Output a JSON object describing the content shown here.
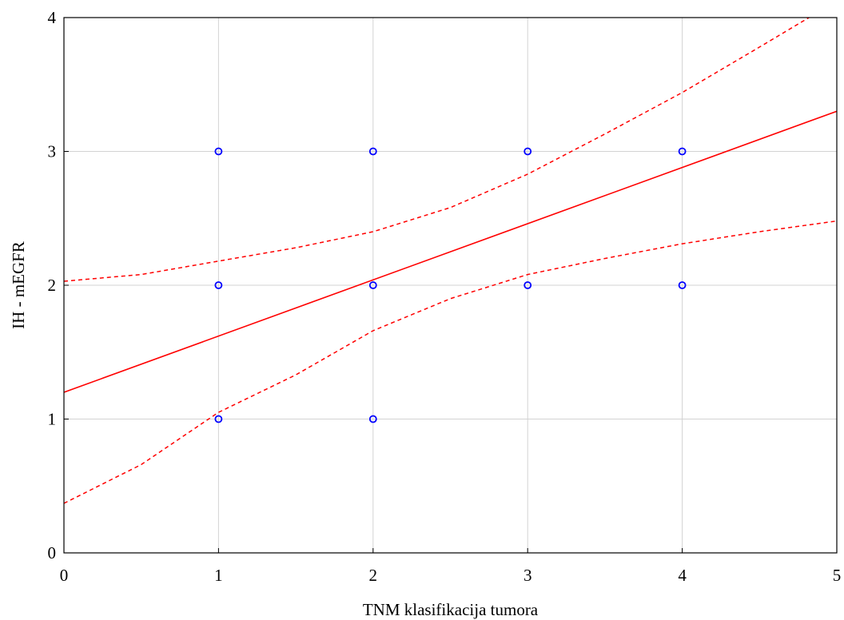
{
  "chart_data": {
    "type": "scatter",
    "xlabel": "TNM klasifikacija tumora",
    "ylabel": "IH - mEGFR",
    "xlim": [
      0,
      5
    ],
    "ylim": [
      0,
      4
    ],
    "x_ticks": [
      "0",
      "1",
      "2",
      "3",
      "4",
      "5"
    ],
    "y_ticks": [
      "0",
      "1",
      "2",
      "3",
      "4"
    ],
    "grid": true,
    "points": [
      {
        "x": 1,
        "y": 3
      },
      {
        "x": 1,
        "y": 2
      },
      {
        "x": 1,
        "y": 1
      },
      {
        "x": 2,
        "y": 3
      },
      {
        "x": 2,
        "y": 2
      },
      {
        "x": 2,
        "y": 1
      },
      {
        "x": 3,
        "y": 3
      },
      {
        "x": 3,
        "y": 2
      },
      {
        "x": 4,
        "y": 3
      },
      {
        "x": 4,
        "y": 2
      }
    ],
    "regression_line": [
      {
        "x": 0,
        "y": 1.2
      },
      {
        "x": 5,
        "y": 3.3
      }
    ],
    "confidence_upper": [
      {
        "x": 0,
        "y": 2.03
      },
      {
        "x": 0.5,
        "y": 2.08
      },
      {
        "x": 1,
        "y": 2.18
      },
      {
        "x": 1.5,
        "y": 2.28
      },
      {
        "x": 2,
        "y": 2.4
      },
      {
        "x": 2.5,
        "y": 2.58
      },
      {
        "x": 3,
        "y": 2.83
      },
      {
        "x": 3.5,
        "y": 3.13
      },
      {
        "x": 4,
        "y": 3.44
      },
      {
        "x": 4.5,
        "y": 3.78
      },
      {
        "x": 4.82,
        "y": 4.0
      }
    ],
    "confidence_lower": [
      {
        "x": 0,
        "y": 0.37
      },
      {
        "x": 0.5,
        "y": 0.66
      },
      {
        "x": 1,
        "y": 1.05
      },
      {
        "x": 1.5,
        "y": 1.33
      },
      {
        "x": 2,
        "y": 1.66
      },
      {
        "x": 2.5,
        "y": 1.9
      },
      {
        "x": 3,
        "y": 2.08
      },
      {
        "x": 3.5,
        "y": 2.2
      },
      {
        "x": 4,
        "y": 2.31
      },
      {
        "x": 4.5,
        "y": 2.4
      },
      {
        "x": 5,
        "y": 2.48
      }
    ],
    "colors": {
      "points": "#0000ff",
      "regression": "#ff0000",
      "confidence": "#ff0000",
      "grid": "#d3d3d3",
      "axis": "#000000"
    }
  }
}
